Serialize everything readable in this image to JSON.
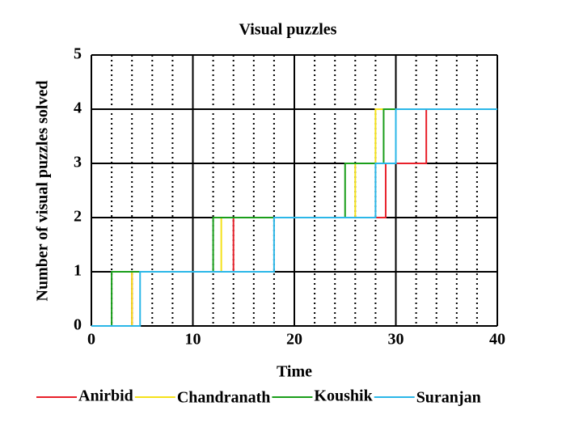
{
  "chart_data": {
    "type": "line",
    "title": "Visual puzzles",
    "x_label": "Time",
    "y_label": "Number of visual puzzles solved",
    "xlim": [
      0,
      40
    ],
    "ylim": [
      0,
      5
    ],
    "xticks": [
      0,
      10,
      20,
      30,
      40
    ],
    "yticks": [
      0,
      1,
      2,
      3,
      4,
      5
    ],
    "x_minor_ticks": [
      2,
      4,
      6,
      8,
      12,
      14,
      16,
      18,
      22,
      24,
      26,
      28,
      32,
      34,
      36,
      38
    ],
    "grid": true,
    "legend": "bottom",
    "series": [
      {
        "name": "Anirbid",
        "color": "#e8202a",
        "x": [
          0,
          4,
          4,
          14,
          14,
          29,
          29,
          33,
          33,
          40
        ],
        "values": [
          0,
          0,
          1,
          1,
          2,
          2,
          3,
          3,
          4,
          4
        ]
      },
      {
        "name": "Chandranath",
        "color": "#f5e21a",
        "x": [
          0,
          4,
          4,
          12.8,
          12.8,
          26,
          26,
          28,
          28,
          40
        ],
        "values": [
          0,
          0,
          1,
          1,
          2,
          2,
          3,
          3,
          4,
          4
        ]
      },
      {
        "name": "Koushik",
        "color": "#1a9e1a",
        "x": [
          0,
          2,
          2,
          12,
          12,
          25,
          25,
          28.8,
          28.8,
          40
        ],
        "values": [
          0,
          0,
          1,
          1,
          2,
          2,
          3,
          3,
          4,
          4
        ]
      },
      {
        "name": "Suranjan",
        "color": "#2bb7e8",
        "x": [
          0,
          4.8,
          4.8,
          18,
          18,
          28,
          28,
          30,
          30,
          40
        ],
        "values": [
          0,
          0,
          1,
          1,
          2,
          2,
          3,
          3,
          4,
          4
        ]
      }
    ]
  }
}
